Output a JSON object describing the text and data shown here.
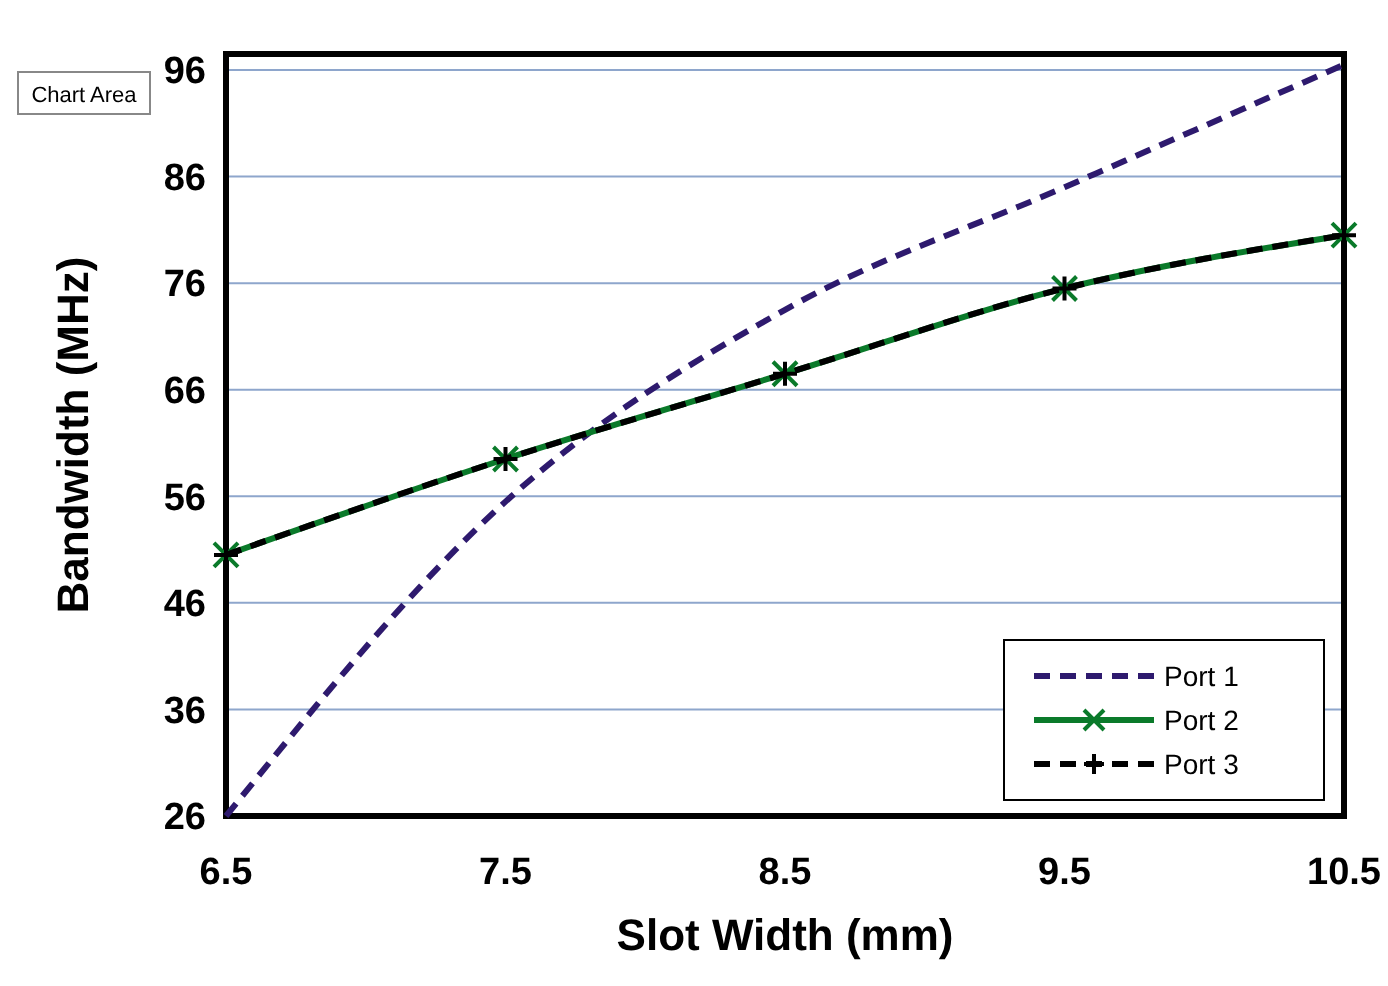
{
  "chart_data": {
    "type": "line",
    "xlabel": "Slot Width (mm)",
    "ylabel": "Bandwidth (MHz)",
    "x": [
      6.5,
      7.5,
      8.5,
      9.5,
      10.5
    ],
    "series": [
      {
        "name": "Port 1",
        "color": "#2e1a6e",
        "values": [
          26,
          55.5,
          73.5,
          85,
          96.5
        ],
        "line_style": "dashed",
        "marker": "none"
      },
      {
        "name": "Port 2",
        "color": "#0a7a2a",
        "values": [
          50.5,
          59.5,
          67.5,
          75.5,
          80.5
        ],
        "line_style": "solid",
        "marker": "cross"
      },
      {
        "name": "Port 3",
        "color": "#000000",
        "values": [
          50.5,
          59.5,
          67.5,
          75.5,
          80.5
        ],
        "line_style": "dashed",
        "marker": "plus"
      }
    ],
    "xlim": [
      6.5,
      10.5
    ],
    "xticks": [
      6.5,
      7.5,
      8.5,
      9.5,
      10.5
    ],
    "ylim": [
      26,
      97.5
    ],
    "yticks": [
      26,
      36,
      46,
      56,
      66,
      76,
      86,
      96
    ],
    "grid": "y",
    "legend": "bottom right",
    "annotations": [
      "Chart Area"
    ]
  }
}
